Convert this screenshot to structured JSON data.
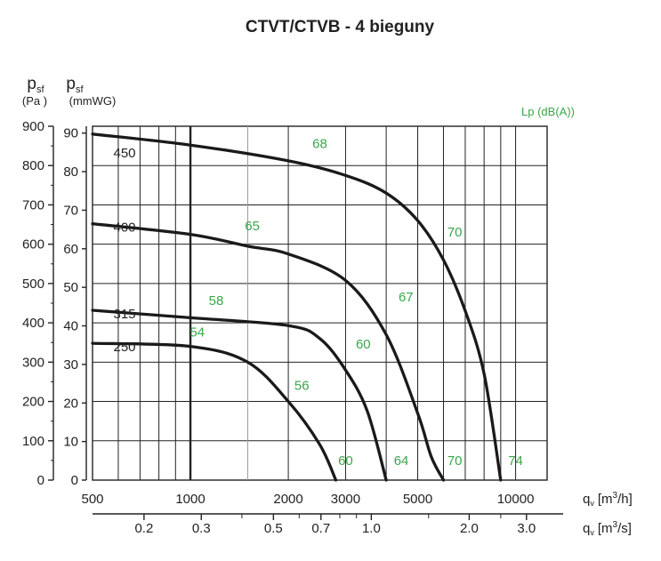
{
  "chart_data": {
    "type": "line",
    "title": "CTVT/CTVB - 4 bieguny",
    "x_scale": "log",
    "y_axis_pa": {
      "label": "p",
      "sub": "sf",
      "unit": "(Pa )",
      "min": 0,
      "max": 900,
      "ticks": [
        "900",
        "800",
        "700",
        "600",
        "500",
        "400",
        "300",
        "200",
        "100",
        "0"
      ]
    },
    "y_axis_mmwg": {
      "label": "p",
      "sub": "sf",
      "unit": "(mmWG)",
      "ticks": [
        "90",
        "80",
        "70",
        "60",
        "50",
        "40",
        "30",
        "20",
        "10",
        "0"
      ]
    },
    "x_axis_m3h": {
      "label": "q",
      "sub": "v",
      "unit_a": "[m",
      "unit_sup": "3",
      "unit_b": "/h]",
      "range": [
        500,
        12500
      ],
      "ticks": [
        {
          "v": 500,
          "label": "500"
        },
        {
          "v": 1000,
          "label": "1000"
        },
        {
          "v": 2000,
          "label": "2000"
        },
        {
          "v": 3000,
          "label": "3000"
        },
        {
          "v": 5000,
          "label": "5000"
        },
        {
          "v": 10000,
          "label": "10000"
        }
      ]
    },
    "x_axis_m3s": {
      "label": "q",
      "sub": "v",
      "unit_a": "[m",
      "unit_sup": "3",
      "unit_b": "/s]",
      "ticks": [
        {
          "v": 0.2,
          "label": "0.2"
        },
        {
          "v": 0.3,
          "label": "0.3"
        },
        {
          "v": 0.5,
          "label": "0.5"
        },
        {
          "v": 0.7,
          "label": "0.7"
        },
        {
          "v": 1.0,
          "label": "1.0"
        },
        {
          "v": 2.0,
          "label": "2.0"
        },
        {
          "v": 3.0,
          "label": "3.0"
        }
      ],
      "minor": [
        0.4,
        0.6,
        0.8,
        0.9,
        1.5,
        2.5
      ]
    },
    "lp_label": "Lp (dB(A))",
    "series": [
      {
        "name": "450",
        "points": [
          [
            500,
            880
          ],
          [
            1000,
            852
          ],
          [
            2000,
            812
          ],
          [
            3000,
            775
          ],
          [
            4000,
            730
          ],
          [
            5000,
            660
          ],
          [
            6000,
            560
          ],
          [
            7000,
            430
          ],
          [
            8000,
            270
          ],
          [
            9000,
            0
          ]
        ],
        "labels": [
          {
            "text": "68",
            "x": 2500,
            "y": 845
          },
          {
            "text": "70",
            "x": 6500,
            "y": 620
          },
          {
            "text": "74",
            "x": 10000,
            "y": 38
          }
        ]
      },
      {
        "name": "400",
        "points": [
          [
            500,
            652
          ],
          [
            1000,
            625
          ],
          [
            1500,
            595
          ],
          [
            2000,
            575
          ],
          [
            3000,
            508
          ],
          [
            4000,
            370
          ],
          [
            5000,
            170
          ],
          [
            5500,
            60
          ],
          [
            6000,
            0
          ]
        ],
        "labels": [
          {
            "text": "65",
            "x": 1550,
            "y": 635
          },
          {
            "text": "67",
            "x": 4600,
            "y": 455
          },
          {
            "text": "70",
            "x": 6500,
            "y": 38
          }
        ]
      },
      {
        "name": "315",
        "points": [
          [
            500,
            432
          ],
          [
            1000,
            413
          ],
          [
            2000,
            393
          ],
          [
            2500,
            360
          ],
          [
            3000,
            280
          ],
          [
            3500,
            175
          ],
          [
            4000,
            0
          ]
        ],
        "labels": [
          {
            "text": "58",
            "x": 1200,
            "y": 445
          },
          {
            "text": "60",
            "x": 3400,
            "y": 335
          },
          {
            "text": "64",
            "x": 4450,
            "y": 38
          }
        ]
      },
      {
        "name": "250",
        "points": [
          [
            500,
            348
          ],
          [
            1000,
            340
          ],
          [
            1500,
            300
          ],
          [
            2000,
            200
          ],
          [
            2500,
            90
          ],
          [
            2800,
            0
          ]
        ],
        "labels": [
          {
            "text": "54",
            "x": 1050,
            "y": 365
          },
          {
            "text": "56",
            "x": 2200,
            "y": 230
          },
          {
            "text": "60",
            "x": 3000,
            "y": 38
          }
        ]
      }
    ]
  }
}
